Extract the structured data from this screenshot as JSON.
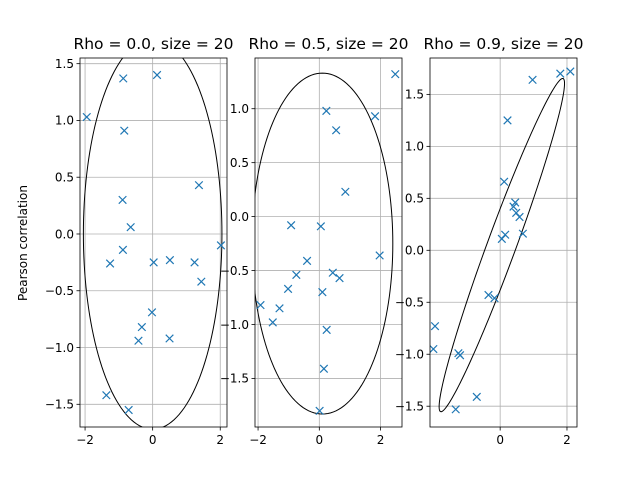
{
  "figure": {
    "ylabel": "Pearson correlation"
  },
  "chart_data": [
    {
      "type": "scatter",
      "title": "Rho = 0.0, size = 20",
      "xlim": [
        -2.15,
        2.2
      ],
      "ylim": [
        -1.7,
        1.55
      ],
      "xticks": [
        -2,
        0,
        2
      ],
      "xtick_labels": [
        "−2",
        "0",
        "2"
      ],
      "yticks": [
        -1.5,
        -1.0,
        -0.5,
        0.0,
        0.5,
        1.0,
        1.5
      ],
      "ytick_labels": [
        "−1.5",
        "−1.0",
        "−0.5",
        "0.0",
        "0.5",
        "1.0",
        "1.5"
      ],
      "grid": true,
      "marker": "x",
      "points": [
        [
          -1.95,
          1.03
        ],
        [
          -0.87,
          1.37
        ],
        [
          0.13,
          1.4
        ],
        [
          -0.84,
          0.91
        ],
        [
          -0.89,
          0.3
        ],
        [
          -0.65,
          0.06
        ],
        [
          1.37,
          0.43
        ],
        [
          -0.88,
          -0.14
        ],
        [
          -1.26,
          -0.26
        ],
        [
          0.03,
          -0.25
        ],
        [
          0.51,
          -0.23
        ],
        [
          1.24,
          -0.25
        ],
        [
          1.44,
          -0.42
        ],
        [
          2.02,
          -0.1
        ],
        [
          -0.02,
          -0.69
        ],
        [
          -0.32,
          -0.82
        ],
        [
          -0.42,
          -0.94
        ],
        [
          0.5,
          -0.92
        ],
        [
          -1.37,
          -1.42
        ],
        [
          -0.71,
          -1.55
        ]
      ],
      "ellipse": {
        "center": [
          0.0,
          0.0
        ],
        "semi_axis_x": 2.05,
        "semi_axis_y": 1.72,
        "angle_deg": 0
      }
    },
    {
      "type": "scatter",
      "title": "Rho = 0.5, size = 20",
      "xlim": [
        -2.1,
        2.7
      ],
      "ylim": [
        -1.95,
        1.47
      ],
      "xticks": [
        -2,
        0,
        2
      ],
      "xtick_labels": [
        "−2",
        "0",
        "2"
      ],
      "yticks": [
        -1.5,
        -1.0,
        -0.5,
        0.0,
        0.5,
        1.0
      ],
      "ytick_labels": [
        "−1.5",
        "−1.0",
        "−0.5",
        "0.0",
        "0.5",
        "1.0"
      ],
      "grid": true,
      "marker": "x",
      "points": [
        [
          -1.92,
          -0.82
        ],
        [
          -1.52,
          -0.98
        ],
        [
          -1.3,
          -0.85
        ],
        [
          -1.02,
          -0.67
        ],
        [
          -0.92,
          -0.08
        ],
        [
          -0.75,
          -0.54
        ],
        [
          -0.4,
          -0.41
        ],
        [
          0.05,
          -0.09
        ],
        [
          0.1,
          -0.7
        ],
        [
          0.23,
          0.98
        ],
        [
          0.55,
          0.8
        ],
        [
          0.85,
          0.23
        ],
        [
          1.82,
          0.93
        ],
        [
          2.48,
          1.32
        ],
        [
          1.97,
          -0.36
        ],
        [
          0.44,
          -0.52
        ],
        [
          0.66,
          -0.57
        ],
        [
          0.24,
          -1.05
        ],
        [
          0.15,
          -1.41
        ],
        [
          0.01,
          -1.8
        ]
      ],
      "ellipse": {
        "center": [
          0.1,
          -0.25
        ],
        "semi_axis_x": 2.3,
        "semi_axis_y": 1.58,
        "angle_deg": 0
      }
    },
    {
      "type": "scatter",
      "title": "Rho = 0.9, size = 20",
      "xlim": [
        -2.1,
        2.3
      ],
      "ylim": [
        -1.7,
        1.85
      ],
      "xticks": [
        0,
        2
      ],
      "xtick_labels": [
        "0",
        "2"
      ],
      "yticks": [
        -1.5,
        -1.0,
        -0.5,
        0.0,
        0.5,
        1.0,
        1.5
      ],
      "ytick_labels": [
        "−1.5",
        "−1.0",
        "−0.5",
        "0.0",
        "0.5",
        "1.0",
        "1.5"
      ],
      "grid": true,
      "marker": "x",
      "points": [
        [
          -1.95,
          -0.73
        ],
        [
          -2.0,
          -0.95
        ],
        [
          -1.25,
          -0.99
        ],
        [
          -1.2,
          -1.01
        ],
        [
          -1.33,
          -1.53
        ],
        [
          -0.7,
          -1.41
        ],
        [
          -0.35,
          -0.43
        ],
        [
          -0.17,
          -0.46
        ],
        [
          0.05,
          0.11
        ],
        [
          0.15,
          0.15
        ],
        [
          0.12,
          0.66
        ],
        [
          0.22,
          1.25
        ],
        [
          0.4,
          0.42
        ],
        [
          0.45,
          0.46
        ],
        [
          0.48,
          0.36
        ],
        [
          0.58,
          0.32
        ],
        [
          0.68,
          0.16
        ],
        [
          0.97,
          1.64
        ],
        [
          1.8,
          1.7
        ],
        [
          2.1,
          1.72
        ]
      ],
      "ellipse": {
        "center": [
          0.05,
          0.05
        ],
        "major_axis_dir": [
          2.0,
          1.7
        ],
        "half_length": 2.45,
        "half_width": 0.3
      }
    }
  ]
}
